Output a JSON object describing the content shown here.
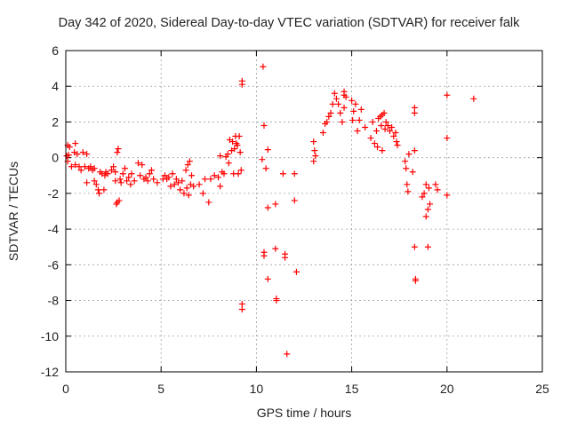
{
  "chart_data": {
    "type": "scatter",
    "title": "Day 342 of 2020, Sidereal Day-to-day VTEC variation (SDTVAR) for receiver falk",
    "xlabel": "GPS time / hours",
    "ylabel": "SDTVAR / TECUs",
    "xlim": [
      0,
      25
    ],
    "ylim": [
      -12,
      6
    ],
    "xticks": [
      0,
      5,
      10,
      15,
      20,
      25
    ],
    "yticks": [
      -12,
      -10,
      -8,
      -6,
      -4,
      -2,
      0,
      2,
      4,
      6
    ],
    "grid": true,
    "marker": "+",
    "series_color": "#ff0000",
    "series": [
      {
        "name": "SDTVAR",
        "points": [
          [
            0.05,
            0.1
          ],
          [
            0.1,
            0.7
          ],
          [
            0.1,
            -0.2
          ],
          [
            0.15,
            0.15
          ],
          [
            0.2,
            0.6
          ],
          [
            0.3,
            -0.5
          ],
          [
            0.45,
            0.3
          ],
          [
            0.5,
            0.8
          ],
          [
            0.5,
            -0.4
          ],
          [
            0.6,
            0.2
          ],
          [
            0.7,
            -0.5
          ],
          [
            0.8,
            -0.7
          ],
          [
            0.9,
            0.3
          ],
          [
            1.0,
            -0.5
          ],
          [
            1.1,
            0.2
          ],
          [
            1.1,
            -1.4
          ],
          [
            1.2,
            -0.6
          ],
          [
            1.3,
            -0.5
          ],
          [
            1.4,
            -0.7
          ],
          [
            1.5,
            -0.6
          ],
          [
            1.5,
            -1.3
          ],
          [
            1.6,
            -1.5
          ],
          [
            1.7,
            -1.8
          ],
          [
            1.75,
            -2.0
          ],
          [
            1.8,
            -0.8
          ],
          [
            1.9,
            -0.9
          ],
          [
            2.0,
            -1.8
          ],
          [
            2.05,
            -1.0
          ],
          [
            2.1,
            -0.8
          ],
          [
            2.2,
            -0.9
          ],
          [
            2.4,
            -0.7
          ],
          [
            2.5,
            -0.5
          ],
          [
            2.6,
            -1.3
          ],
          [
            2.6,
            -0.8
          ],
          [
            2.65,
            -2.6
          ],
          [
            2.7,
            0.3
          ],
          [
            2.7,
            -2.5
          ],
          [
            2.75,
            0.5
          ],
          [
            2.8,
            -2.4
          ],
          [
            2.85,
            -1.2
          ],
          [
            2.9,
            -1.4
          ],
          [
            3.0,
            -0.9
          ],
          [
            3.1,
            -0.6
          ],
          [
            3.2,
            -1.3
          ],
          [
            3.3,
            -1.1
          ],
          [
            3.4,
            -1.5
          ],
          [
            3.45,
            -0.9
          ],
          [
            3.6,
            -1.3
          ],
          [
            3.8,
            -0.3
          ],
          [
            3.9,
            -1.0
          ],
          [
            4.0,
            -0.4
          ],
          [
            4.1,
            -1.2
          ],
          [
            4.2,
            -1.1
          ],
          [
            4.3,
            -1.3
          ],
          [
            4.4,
            -0.9
          ],
          [
            4.5,
            -0.7
          ],
          [
            4.6,
            -1.2
          ],
          [
            4.8,
            -1.4
          ],
          [
            5.1,
            -1.2
          ],
          [
            5.2,
            -1.0
          ],
          [
            5.3,
            -1.2
          ],
          [
            5.4,
            -1.1
          ],
          [
            5.5,
            -1.6
          ],
          [
            5.6,
            -0.9
          ],
          [
            5.7,
            -1.5
          ],
          [
            5.8,
            -1.2
          ],
          [
            5.9,
            -1.4
          ],
          [
            6.0,
            -1.8
          ],
          [
            6.1,
            -1.3
          ],
          [
            6.2,
            -2.0
          ],
          [
            6.3,
            -0.7
          ],
          [
            6.35,
            -1.7
          ],
          [
            6.4,
            -0.4
          ],
          [
            6.45,
            -2.1
          ],
          [
            6.5,
            -0.2
          ],
          [
            6.55,
            -1.5
          ],
          [
            6.6,
            -1.0
          ],
          [
            6.7,
            -1.6
          ],
          [
            7.0,
            -1.5
          ],
          [
            7.2,
            -2.0
          ],
          [
            7.3,
            -1.2
          ],
          [
            7.5,
            -2.5
          ],
          [
            7.6,
            -1.2
          ],
          [
            7.8,
            -1.0
          ],
          [
            8.0,
            -1.1
          ],
          [
            8.1,
            0.1
          ],
          [
            8.1,
            -1.6
          ],
          [
            8.2,
            -0.8
          ],
          [
            8.3,
            -0.9
          ],
          [
            8.4,
            0.05
          ],
          [
            8.5,
            0.2
          ],
          [
            8.55,
            -0.3
          ],
          [
            8.6,
            1.0
          ],
          [
            8.7,
            0.4
          ],
          [
            8.75,
            0.9
          ],
          [
            8.8,
            -0.9
          ],
          [
            8.85,
            0.5
          ],
          [
            8.9,
            1.2
          ],
          [
            8.95,
            0.8
          ],
          [
            9.0,
            0.7
          ],
          [
            9.05,
            -0.9
          ],
          [
            9.1,
            1.2
          ],
          [
            9.15,
            0.3
          ],
          [
            9.2,
            -0.7
          ],
          [
            9.25,
            4.3
          ],
          [
            9.25,
            4.1
          ],
          [
            9.25,
            -8.2
          ],
          [
            9.25,
            -8.5
          ],
          [
            10.3,
            -0.1
          ],
          [
            10.35,
            5.1
          ],
          [
            10.4,
            1.8
          ],
          [
            10.4,
            -5.3
          ],
          [
            10.4,
            -5.5
          ],
          [
            10.5,
            -0.6
          ],
          [
            10.6,
            0.45
          ],
          [
            10.6,
            -2.8
          ],
          [
            10.6,
            -6.8
          ],
          [
            11.0,
            -2.6
          ],
          [
            11.0,
            -5.1
          ],
          [
            11.05,
            -7.9
          ],
          [
            11.05,
            -8.0
          ],
          [
            11.4,
            -0.9
          ],
          [
            11.5,
            -5.4
          ],
          [
            11.5,
            -5.6
          ],
          [
            11.6,
            -11.0
          ],
          [
            12.0,
            -0.9
          ],
          [
            12.0,
            -2.4
          ],
          [
            12.1,
            -6.4
          ],
          [
            13.0,
            -0.2
          ],
          [
            13.0,
            0.9
          ],
          [
            13.05,
            0.4
          ],
          [
            13.1,
            0.1
          ],
          [
            13.5,
            1.4
          ],
          [
            13.6,
            1.9
          ],
          [
            13.7,
            2.0
          ],
          [
            13.8,
            2.3
          ],
          [
            13.9,
            2.5
          ],
          [
            14.0,
            3.0
          ],
          [
            14.1,
            3.6
          ],
          [
            14.2,
            3.3
          ],
          [
            14.3,
            3.0
          ],
          [
            14.4,
            2.5
          ],
          [
            14.5,
            2.0
          ],
          [
            14.6,
            3.5
          ],
          [
            14.6,
            3.7
          ],
          [
            14.6,
            2.8
          ],
          [
            14.7,
            3.4
          ],
          [
            15.0,
            3.2
          ],
          [
            15.05,
            2.1
          ],
          [
            15.1,
            2.6
          ],
          [
            15.2,
            3.0
          ],
          [
            15.3,
            1.5
          ],
          [
            15.4,
            2.1
          ],
          [
            15.5,
            2.7
          ],
          [
            15.7,
            1.7
          ],
          [
            16.0,
            1.1
          ],
          [
            16.1,
            2.0
          ],
          [
            16.2,
            0.8
          ],
          [
            16.3,
            1.5
          ],
          [
            16.35,
            0.6
          ],
          [
            16.4,
            2.2
          ],
          [
            16.5,
            2.3
          ],
          [
            16.55,
            1.8
          ],
          [
            16.6,
            2.4
          ],
          [
            16.6,
            0.4
          ],
          [
            16.7,
            2.5
          ],
          [
            16.75,
            1.6
          ],
          [
            16.8,
            2.0
          ],
          [
            16.9,
            1.8
          ],
          [
            17.0,
            1.5
          ],
          [
            17.1,
            1.7
          ],
          [
            17.2,
            1.2
          ],
          [
            17.3,
            1.4
          ],
          [
            17.35,
            0.9
          ],
          [
            17.4,
            0.7
          ],
          [
            17.8,
            -0.2
          ],
          [
            17.85,
            -0.6
          ],
          [
            17.9,
            -1.5
          ],
          [
            17.95,
            -1.9
          ],
          [
            18.0,
            0.2
          ],
          [
            18.2,
            -0.8
          ],
          [
            18.3,
            0.4
          ],
          [
            18.3,
            2.5
          ],
          [
            18.3,
            2.8
          ],
          [
            18.3,
            -5.0
          ],
          [
            18.35,
            -6.8
          ],
          [
            18.35,
            -6.9
          ],
          [
            18.7,
            -2.2
          ],
          [
            18.8,
            -2.0
          ],
          [
            18.9,
            -1.5
          ],
          [
            18.9,
            -3.3
          ],
          [
            19.0,
            -2.9
          ],
          [
            19.0,
            -5.0
          ],
          [
            19.05,
            -1.7
          ],
          [
            19.1,
            -2.6
          ],
          [
            19.4,
            -1.5
          ],
          [
            19.5,
            -1.8
          ],
          [
            20.0,
            3.5
          ],
          [
            20.0,
            1.1
          ],
          [
            20.0,
            -2.1
          ],
          [
            21.4,
            3.3
          ]
        ]
      }
    ]
  }
}
